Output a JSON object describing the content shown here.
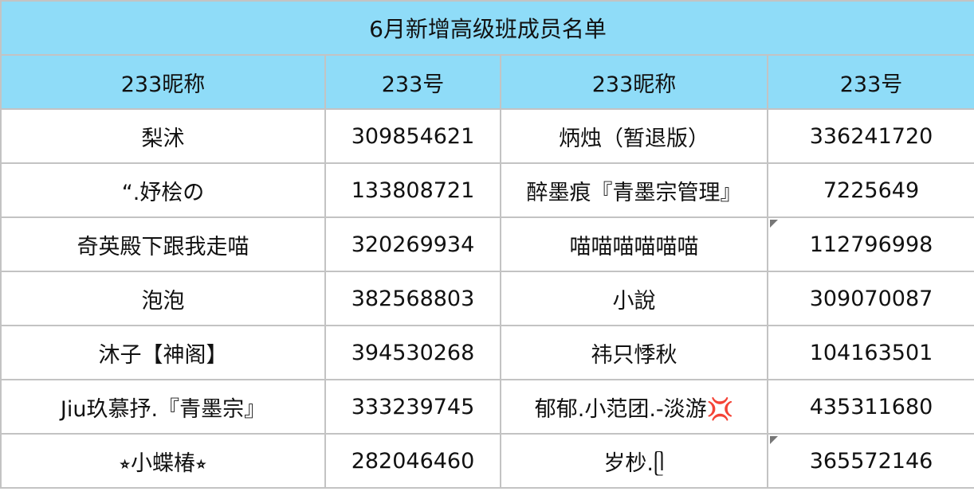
{
  "title": "6月新增高级班成员名单",
  "headers": [
    "233昵称",
    "233号",
    "233昵称",
    "233号"
  ],
  "rows": [
    {
      "name1": "梨沭",
      "id1": "309854621",
      "name2": "炳烛（暂退版）",
      "id2": "336241720",
      "note2": false
    },
    {
      "name1": "“.妤桧の",
      "id1": "133808721",
      "name2": "醉墨痕『青墨宗管理』",
      "id2": "7225649",
      "note2": false
    },
    {
      "name1": "奇英殿下跟我走喵",
      "id1": "320269934",
      "name2": "喵喵喵喵喵喵",
      "id2": "112796998",
      "note2": true
    },
    {
      "name1": "泡泡",
      "id1": "382568803",
      "name2": "小說",
      "id2": "309070087",
      "note2": false
    },
    {
      "name1": "沐子【神阁】",
      "id1": "394530268",
      "name2": "祎只悸秋",
      "id2": "104163501",
      "note2": false
    },
    {
      "name1": "Jiu玖慕抒.『青墨宗』",
      "id1": "333239745",
      "name2": "郁郁.小范团.-淡游💢",
      "id2": "435311680",
      "note2": false
    },
    {
      "name1": "⭒小蝶椿⭒",
      "id1": "282046460",
      "name2": "岁杪.ᥫ",
      "id2": "365572146",
      "note2": true
    }
  ],
  "colors": {
    "header_bg": "#8fdcf8",
    "grid": "#c3c3c3"
  }
}
